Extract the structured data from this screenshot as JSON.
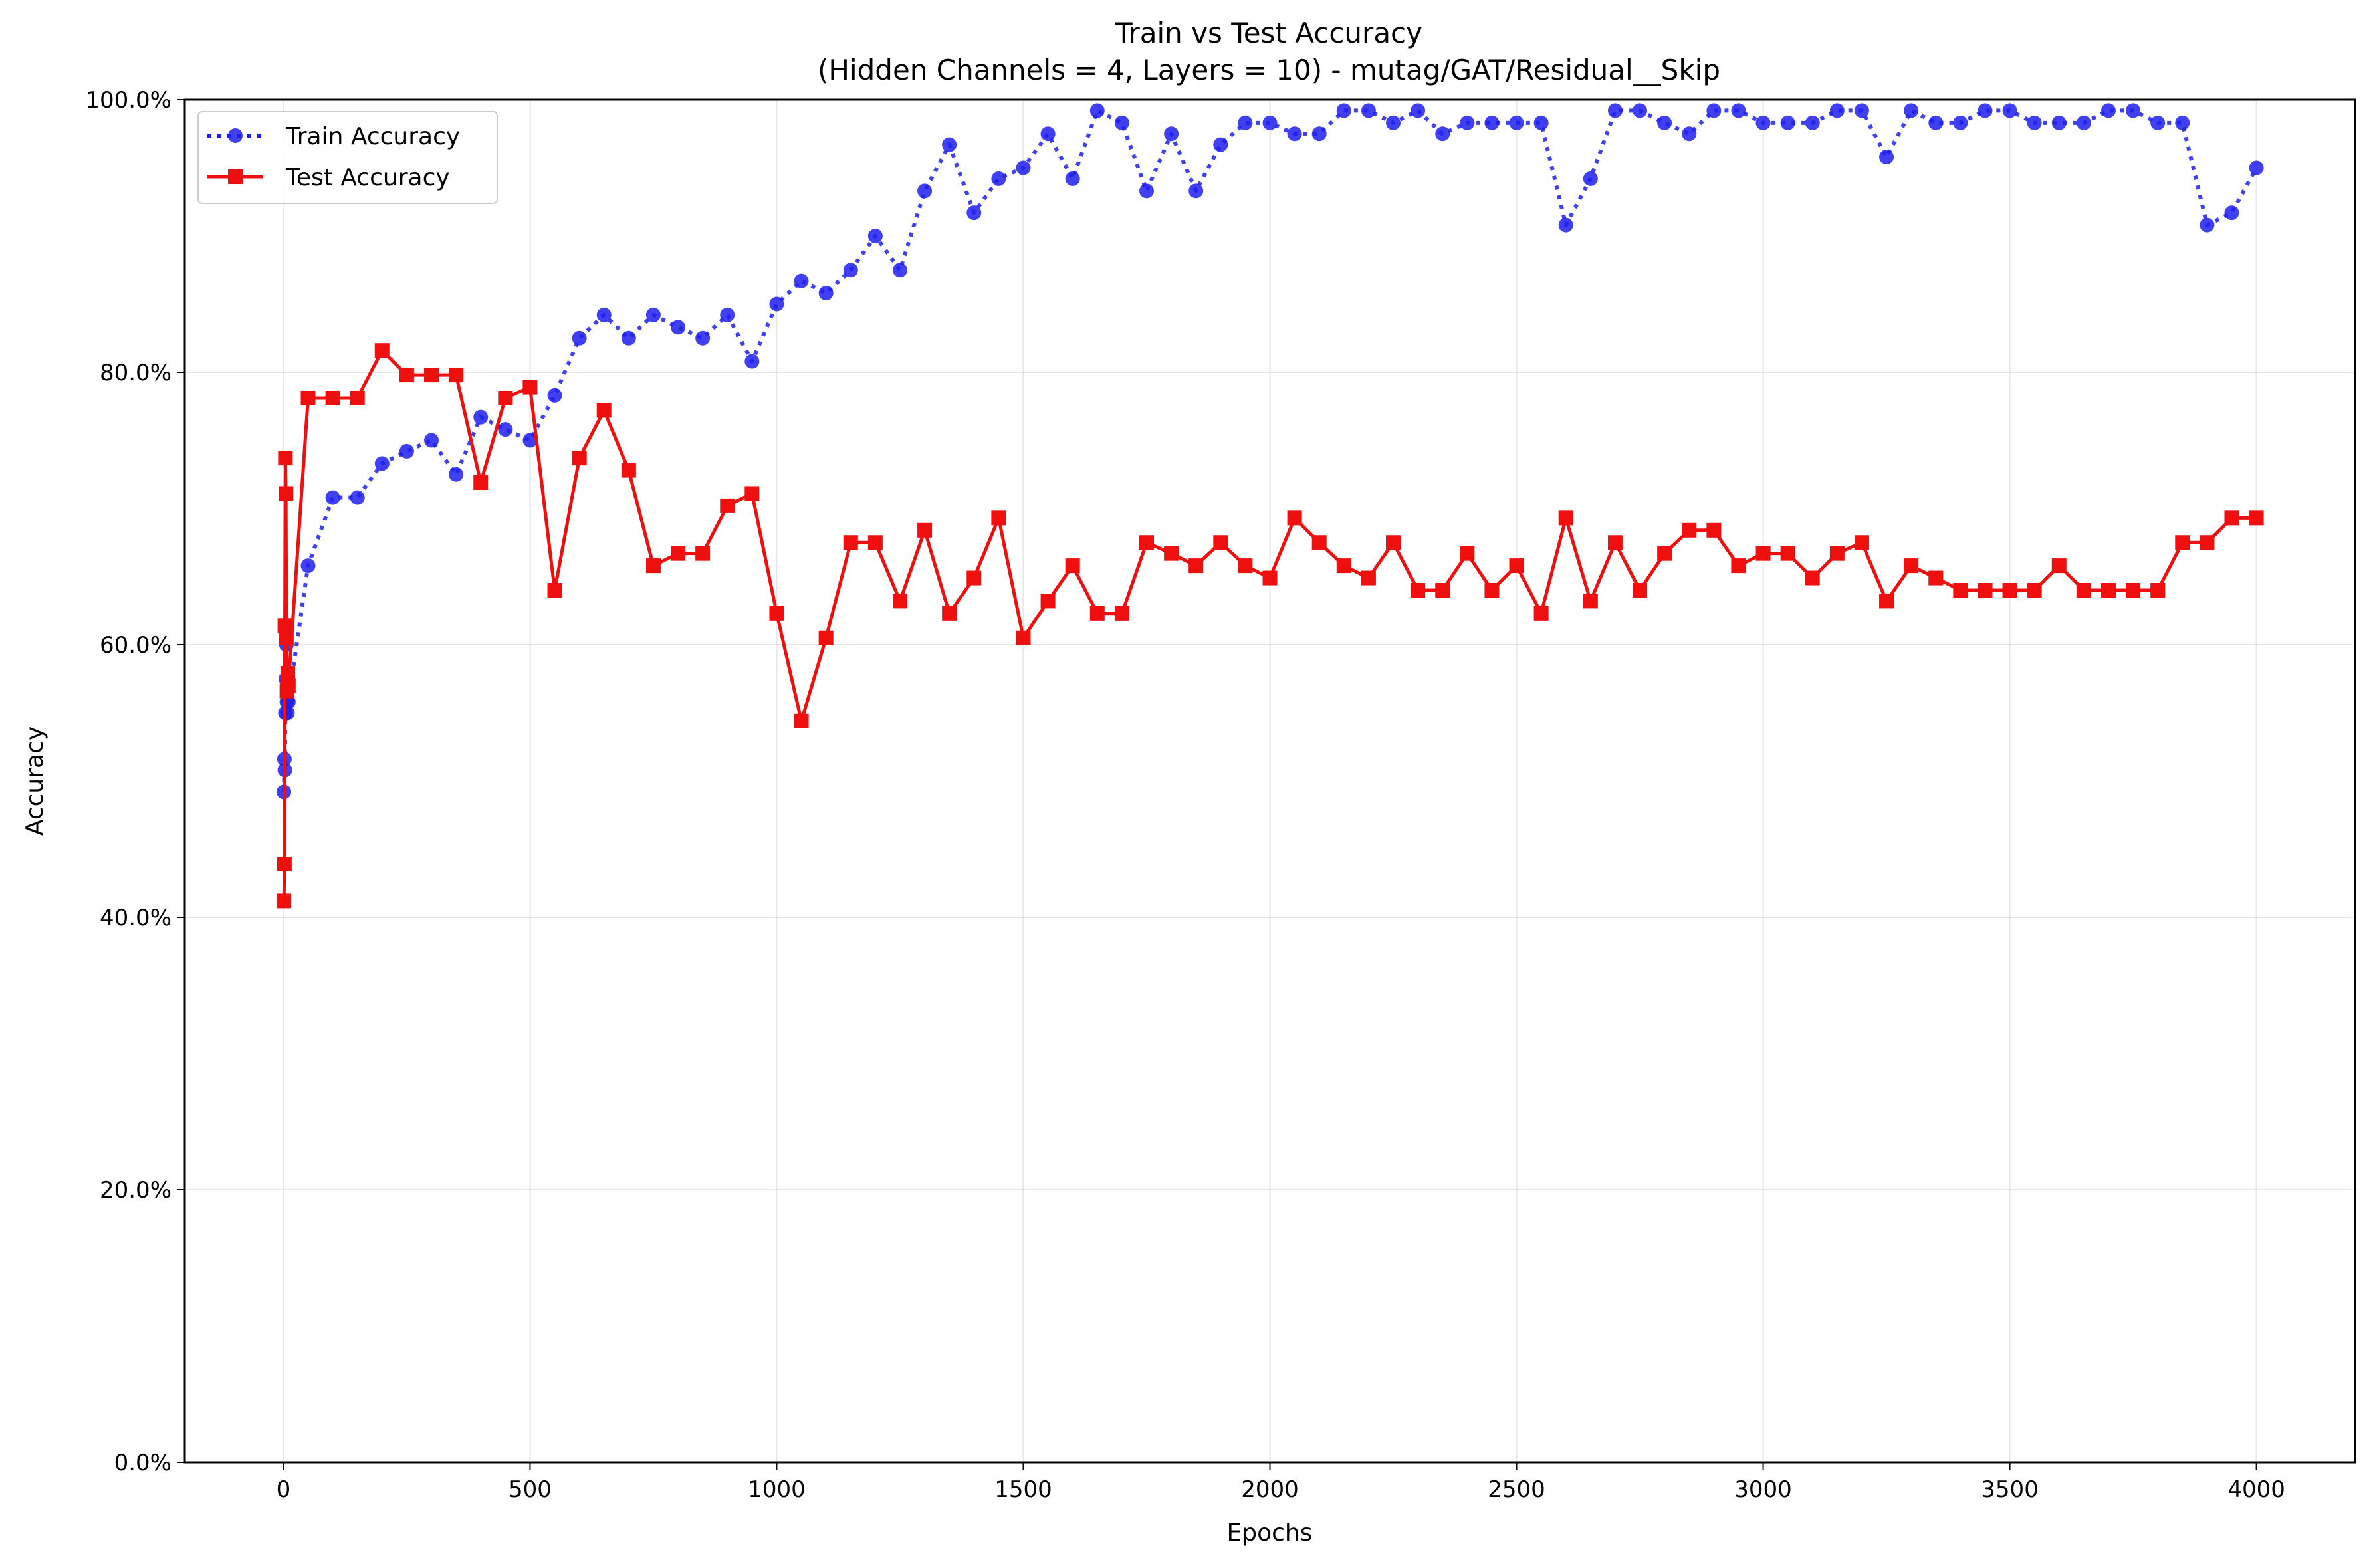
{
  "chart_data": {
    "type": "line",
    "title": "Train vs Test Accuracy",
    "subtitle": "(Hidden Channels = 4, Layers = 10) - mutag/GAT/Residual__Skip",
    "xlabel": "Epochs",
    "ylabel": "Accuracy",
    "xlim": [
      -200,
      4200
    ],
    "ylim": [
      0,
      100
    ],
    "xticks": [
      0,
      500,
      1000,
      1500,
      2000,
      2500,
      3000,
      3500,
      4000
    ],
    "yticks": [
      0,
      20,
      40,
      60,
      80,
      100
    ],
    "ytick_labels": [
      "0.0%",
      "20.0%",
      "40.0%",
      "60.0%",
      "80.0%",
      "100.0%"
    ],
    "grid": true,
    "legend_position": "top-left",
    "x": [
      1,
      2,
      3,
      4,
      5,
      6,
      7,
      8,
      9,
      10,
      50,
      100,
      150,
      200,
      250,
      300,
      350,
      400,
      450,
      500,
      550,
      600,
      650,
      700,
      750,
      800,
      850,
      900,
      950,
      1000,
      1050,
      1100,
      1150,
      1200,
      1250,
      1300,
      1350,
      1400,
      1450,
      1500,
      1550,
      1600,
      1650,
      1700,
      1750,
      1800,
      1850,
      1900,
      1950,
      2000,
      2050,
      2100,
      2150,
      2200,
      2250,
      2300,
      2350,
      2400,
      2450,
      2500,
      2550,
      2600,
      2650,
      2700,
      2750,
      2800,
      2850,
      2900,
      2950,
      3000,
      3050,
      3100,
      3150,
      3200,
      3250,
      3300,
      3350,
      3400,
      3450,
      3500,
      3550,
      3600,
      3650,
      3700,
      3750,
      3800,
      3850,
      3900,
      3950,
      4000
    ],
    "series": [
      {
        "name": "Train Accuracy",
        "color": "#1f1fef",
        "style": "dotted",
        "marker": "circle",
        "values": [
          49.2,
          51.6,
          50.8,
          55.0,
          57.5,
          60.0,
          55.8,
          55.0,
          56.7,
          55.8,
          65.8,
          70.8,
          70.8,
          73.3,
          74.2,
          75.0,
          72.5,
          76.7,
          75.8,
          75.0,
          78.3,
          82.5,
          84.2,
          82.5,
          84.2,
          83.3,
          82.5,
          84.2,
          80.8,
          85.0,
          86.7,
          85.8,
          87.5,
          90.0,
          87.5,
          93.3,
          96.7,
          91.7,
          94.2,
          95.0,
          97.5,
          94.2,
          99.2,
          98.3,
          93.3,
          97.5,
          93.3,
          96.7,
          98.3,
          98.3,
          97.5,
          97.5,
          99.2,
          99.2,
          98.3,
          99.2,
          97.5,
          98.3,
          98.3,
          98.3,
          98.3,
          90.8,
          94.2,
          99.2,
          99.2,
          98.3,
          97.5,
          99.2,
          99.2,
          98.3,
          98.3,
          98.3,
          99.2,
          99.2,
          95.8,
          99.2,
          98.3,
          98.3,
          99.2,
          99.2,
          98.3,
          98.3,
          98.3,
          99.2,
          99.2,
          98.3,
          98.3,
          90.8,
          91.7,
          95.0
        ]
      },
      {
        "name": "Test Accuracy",
        "color": "#ef0f0f",
        "style": "solid",
        "marker": "square",
        "values": [
          41.2,
          43.9,
          61.4,
          73.7,
          71.1,
          60.5,
          56.6,
          57.0,
          57.9,
          57.0,
          78.1,
          78.1,
          78.1,
          81.6,
          79.8,
          79.8,
          79.8,
          71.9,
          78.1,
          78.9,
          64.0,
          73.7,
          77.2,
          72.8,
          65.8,
          66.7,
          66.7,
          70.2,
          71.1,
          62.3,
          54.4,
          60.5,
          67.5,
          67.5,
          63.2,
          68.4,
          62.3,
          64.9,
          69.3,
          60.5,
          63.2,
          65.8,
          62.3,
          62.3,
          67.5,
          66.7,
          65.8,
          67.5,
          65.8,
          64.9,
          69.3,
          67.5,
          65.8,
          64.9,
          67.5,
          64.0,
          64.0,
          66.7,
          64.0,
          65.8,
          62.3,
          69.3,
          63.2,
          67.5,
          64.0,
          66.7,
          68.4,
          68.4,
          65.8,
          66.7,
          66.7,
          64.9,
          66.7,
          67.5,
          63.2,
          65.8,
          64.9,
          64.0,
          64.0,
          64.0,
          64.0,
          65.8,
          64.0,
          64.0,
          64.0,
          64.0,
          67.5,
          67.5,
          69.3,
          69.3
        ]
      }
    ]
  }
}
